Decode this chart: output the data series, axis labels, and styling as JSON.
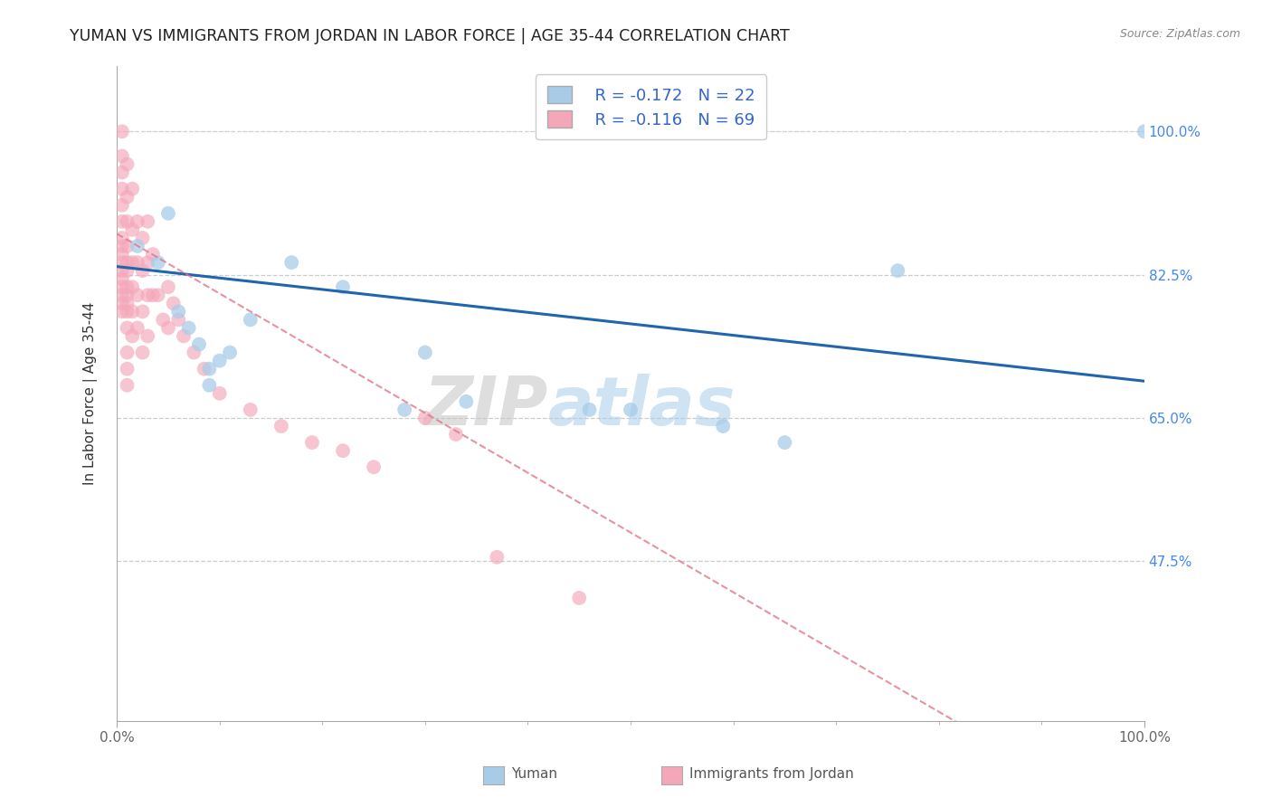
{
  "title": "YUMAN VS IMMIGRANTS FROM JORDAN IN LABOR FORCE | AGE 35-44 CORRELATION CHART",
  "source_text": "Source: ZipAtlas.com",
  "ylabel": "In Labor Force | Age 35-44",
  "xlim": [
    0.0,
    1.0
  ],
  "ylim": [
    0.28,
    1.08
  ],
  "y_tick_values": [
    0.475,
    0.65,
    0.825,
    1.0
  ],
  "y_tick_labels": [
    "47.5%",
    "65.0%",
    "82.5%",
    "100.0%"
  ],
  "x_tick_labels": [
    "0.0%",
    "100.0%"
  ],
  "legend_blue_R": "R = -0.172",
  "legend_blue_N": "N = 22",
  "legend_pink_R": "R = -0.116",
  "legend_pink_N": "N = 69",
  "blue_color": "#a8cce8",
  "pink_color": "#f4a7b9",
  "blue_trend_color": "#2166ac",
  "pink_trend_color": "#e07888",
  "watermark_zip": "ZIP",
  "watermark_atlas": "atlas",
  "blue_points": [
    [
      0.02,
      0.86
    ],
    [
      0.04,
      0.84
    ],
    [
      0.05,
      0.9
    ],
    [
      0.06,
      0.78
    ],
    [
      0.07,
      0.76
    ],
    [
      0.08,
      0.74
    ],
    [
      0.09,
      0.71
    ],
    [
      0.09,
      0.69
    ],
    [
      0.1,
      0.72
    ],
    [
      0.11,
      0.73
    ],
    [
      0.13,
      0.77
    ],
    [
      0.17,
      0.84
    ],
    [
      0.22,
      0.81
    ],
    [
      0.28,
      0.66
    ],
    [
      0.3,
      0.73
    ],
    [
      0.34,
      0.67
    ],
    [
      0.46,
      0.66
    ],
    [
      0.5,
      0.66
    ],
    [
      0.59,
      0.64
    ],
    [
      0.65,
      0.62
    ],
    [
      0.76,
      0.83
    ],
    [
      1.0,
      1.0
    ]
  ],
  "pink_points": [
    [
      0.005,
      1.0
    ],
    [
      0.005,
      0.97
    ],
    [
      0.005,
      0.95
    ],
    [
      0.005,
      0.93
    ],
    [
      0.005,
      0.91
    ],
    [
      0.005,
      0.89
    ],
    [
      0.005,
      0.87
    ],
    [
      0.005,
      0.86
    ],
    [
      0.005,
      0.85
    ],
    [
      0.005,
      0.84
    ],
    [
      0.005,
      0.83
    ],
    [
      0.005,
      0.82
    ],
    [
      0.005,
      0.81
    ],
    [
      0.005,
      0.8
    ],
    [
      0.005,
      0.79
    ],
    [
      0.005,
      0.78
    ],
    [
      0.01,
      0.96
    ],
    [
      0.01,
      0.92
    ],
    [
      0.01,
      0.89
    ],
    [
      0.01,
      0.86
    ],
    [
      0.01,
      0.84
    ],
    [
      0.01,
      0.83
    ],
    [
      0.01,
      0.81
    ],
    [
      0.01,
      0.8
    ],
    [
      0.01,
      0.79
    ],
    [
      0.01,
      0.78
    ],
    [
      0.01,
      0.76
    ],
    [
      0.01,
      0.73
    ],
    [
      0.01,
      0.71
    ],
    [
      0.01,
      0.69
    ],
    [
      0.015,
      0.93
    ],
    [
      0.015,
      0.88
    ],
    [
      0.015,
      0.84
    ],
    [
      0.015,
      0.81
    ],
    [
      0.015,
      0.78
    ],
    [
      0.015,
      0.75
    ],
    [
      0.02,
      0.89
    ],
    [
      0.02,
      0.84
    ],
    [
      0.02,
      0.8
    ],
    [
      0.02,
      0.76
    ],
    [
      0.025,
      0.87
    ],
    [
      0.025,
      0.83
    ],
    [
      0.025,
      0.78
    ],
    [
      0.025,
      0.73
    ],
    [
      0.03,
      0.89
    ],
    [
      0.03,
      0.84
    ],
    [
      0.03,
      0.8
    ],
    [
      0.03,
      0.75
    ],
    [
      0.035,
      0.85
    ],
    [
      0.035,
      0.8
    ],
    [
      0.04,
      0.8
    ],
    [
      0.045,
      0.77
    ],
    [
      0.05,
      0.81
    ],
    [
      0.05,
      0.76
    ],
    [
      0.055,
      0.79
    ],
    [
      0.06,
      0.77
    ],
    [
      0.065,
      0.75
    ],
    [
      0.075,
      0.73
    ],
    [
      0.085,
      0.71
    ],
    [
      0.1,
      0.68
    ],
    [
      0.13,
      0.66
    ],
    [
      0.16,
      0.64
    ],
    [
      0.19,
      0.62
    ],
    [
      0.22,
      0.61
    ],
    [
      0.25,
      0.59
    ],
    [
      0.3,
      0.65
    ],
    [
      0.33,
      0.63
    ],
    [
      0.37,
      0.48
    ],
    [
      0.45,
      0.43
    ]
  ],
  "grid_color": "#cccccc",
  "top_line_color": "#dddddd"
}
